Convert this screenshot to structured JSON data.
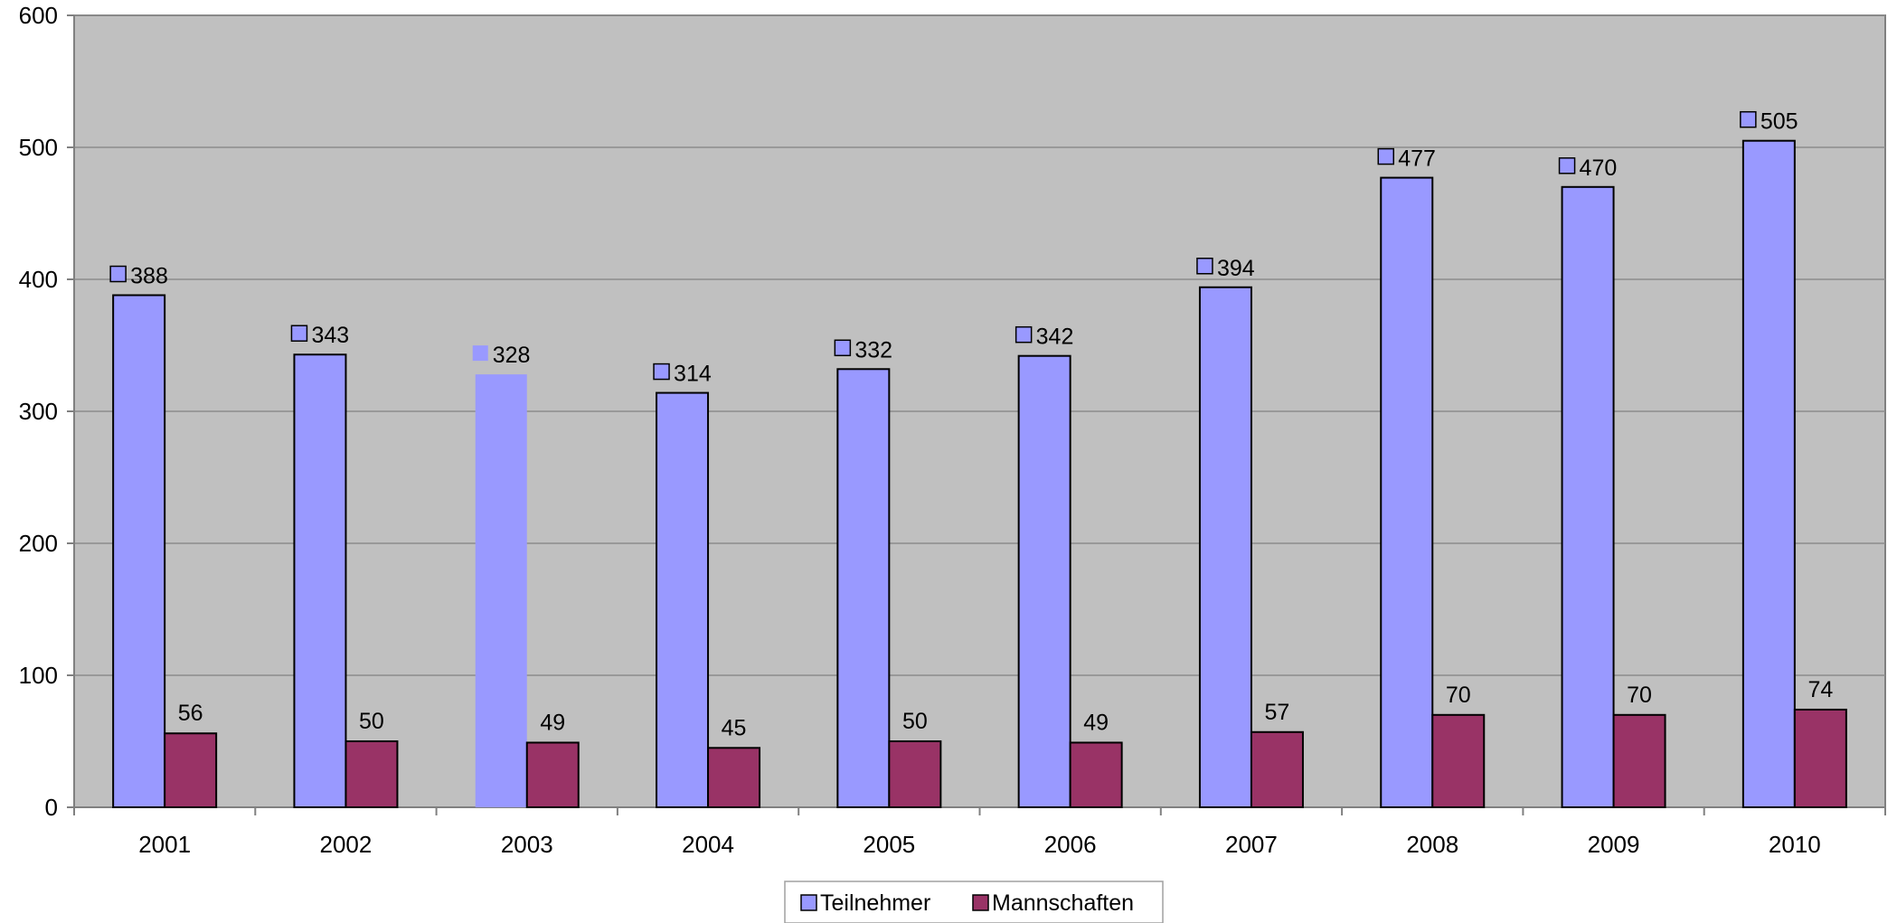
{
  "chart_data": {
    "type": "bar",
    "title": "",
    "xlabel": "",
    "ylabel": "",
    "categories": [
      "2001",
      "2002",
      "2003",
      "2004",
      "2005",
      "2006",
      "2007",
      "2008",
      "2009",
      "2010"
    ],
    "series": [
      {
        "name": "Teilnehmer",
        "color": "#9999ff",
        "values": [
          388,
          343,
          328,
          314,
          332,
          342,
          394,
          477,
          470,
          505
        ]
      },
      {
        "name": "Mannschaften",
        "color": "#993366",
        "values": [
          56,
          50,
          49,
          45,
          50,
          49,
          57,
          70,
          70,
          74
        ]
      }
    ],
    "ylim": [
      0,
      600
    ],
    "yticks": [
      0,
      100,
      200,
      300,
      400,
      500,
      600
    ],
    "grid": true,
    "legend_position": "bottom",
    "plot_background": "#c0c0c0",
    "data_labels": true,
    "highlighted_category": "2003"
  }
}
